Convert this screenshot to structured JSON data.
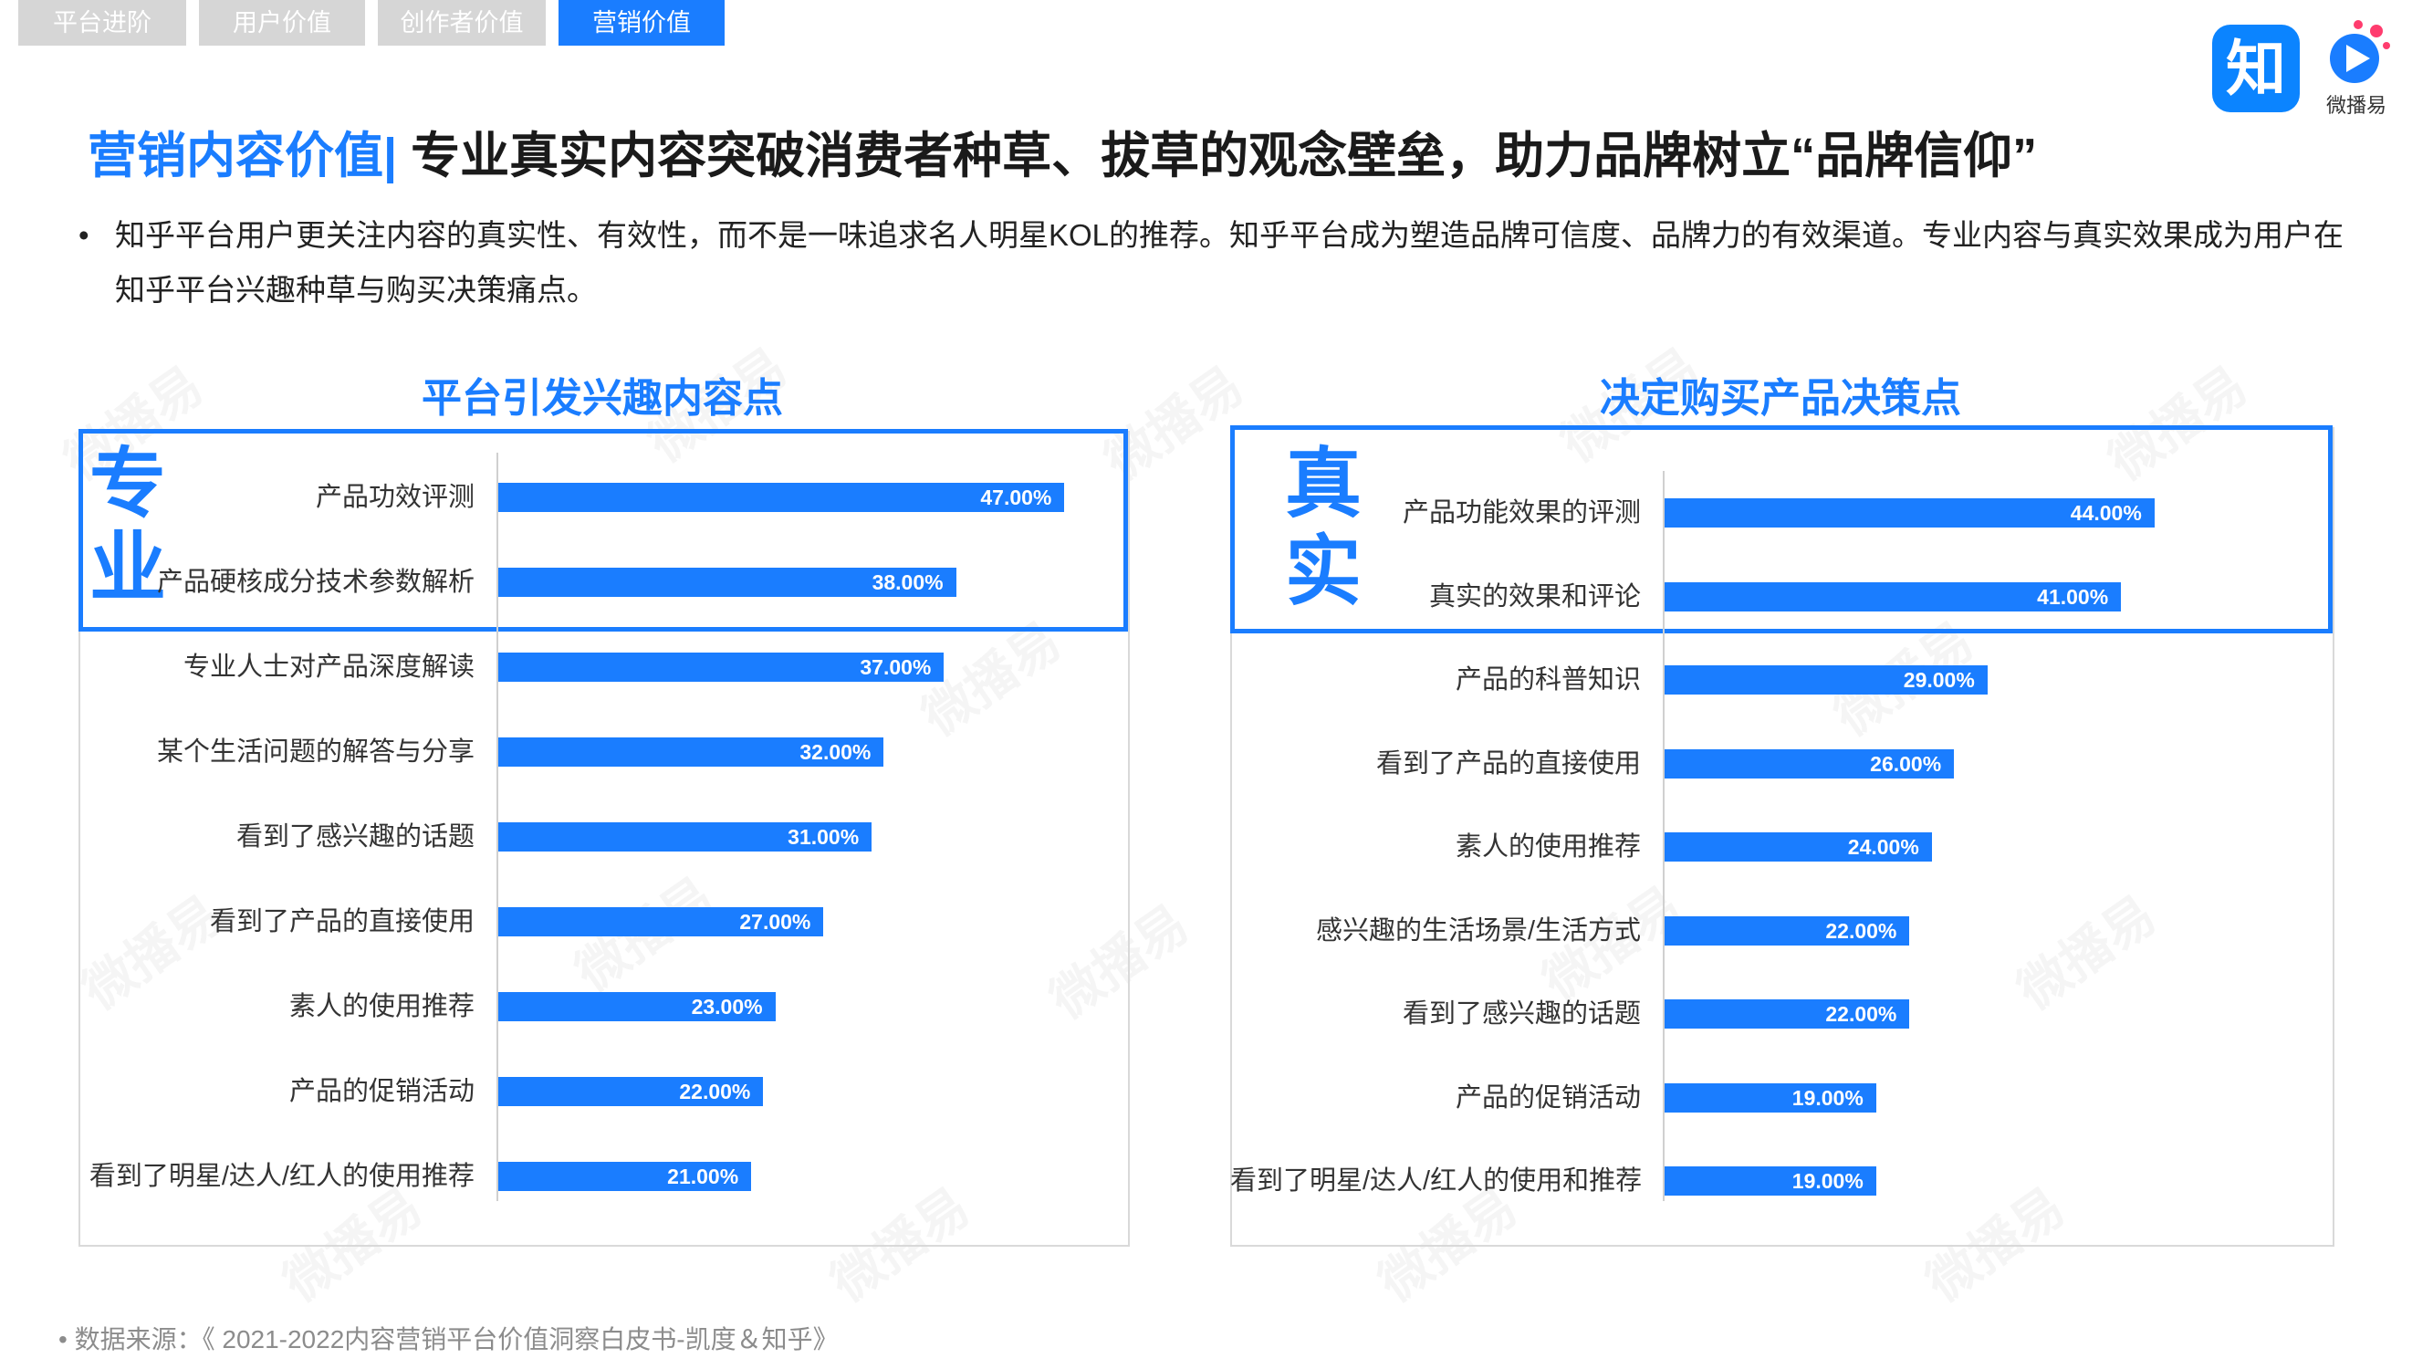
{
  "tabs": [
    {
      "label": "平台进阶",
      "active": false
    },
    {
      "label": "用户价值",
      "active": false
    },
    {
      "label": "创作者价值",
      "active": false
    },
    {
      "label": "营销价值",
      "active": true
    }
  ],
  "title": {
    "prefix": "营销内容价值|",
    "main": " 专业真实内容突破消费者种草、拔草的观念壁垒，助力品牌树立“品牌信仰”"
  },
  "bullet": "知乎平台用户更关注内容的真实性、有效性，而不是一味追求名人明星KOL的推荐。知乎平台成为塑造品牌可信度、品牌力的有效渠道。专业内容与真实效果成为用户在知乎平台兴趣种草与购买决策痛点。",
  "logos": {
    "zhihu": "知",
    "weiboyi": "微播易"
  },
  "watermark": "微播易",
  "source": "数据来源：《 2021-2022内容营销平台价值洞察白皮书-凯度＆知乎》",
  "colors": {
    "accent": "#1a7dff",
    "zhihu_blue": "#0b84ff"
  },
  "chart_data": [
    {
      "type": "bar",
      "orientation": "horizontal",
      "title": "平台引发兴趣内容点",
      "highlight": {
        "chars": [
          "专",
          "业"
        ],
        "count": 2
      },
      "categories": [
        "产品功效评测",
        "产品硬核成分技术参数解析",
        "专业人士对产品深度解读",
        "某个生活问题的解答与分享",
        "看到了感兴趣的话题",
        "看到了产品的直接使用",
        "素人的使用推荐",
        "产品的促销活动",
        "看到了明星/达人/红人的使用推荐"
      ],
      "values": [
        47,
        38,
        37,
        32,
        31,
        27,
        23,
        22,
        21
      ],
      "labels": [
        "47.00%",
        "38.00%",
        "37.00%",
        "32.00%",
        "31.00%",
        "27.00%",
        "23.00%",
        "22.00%",
        "21.00%"
      ],
      "xlim": [
        0,
        100
      ]
    },
    {
      "type": "bar",
      "orientation": "horizontal",
      "title": "决定购买产品决策点",
      "highlight": {
        "chars": [
          "真",
          "实"
        ],
        "count": 2
      },
      "categories": [
        "产品功能效果的评测",
        "真实的效果和评论",
        "产品的科普知识",
        "看到了产品的直接使用",
        "素人的使用推荐",
        "感兴趣的生活场景/生活方式",
        "看到了感兴趣的话题",
        "产品的促销活动",
        "看到了明星/达人/红人的使用和推荐"
      ],
      "values": [
        44,
        41,
        29,
        26,
        24,
        22,
        22,
        19,
        19
      ],
      "labels": [
        "44.00%",
        "41.00%",
        "29.00%",
        "26.00%",
        "24.00%",
        "22.00%",
        "22.00%",
        "19.00%",
        "19.00%"
      ],
      "xlim": [
        0,
        100
      ]
    }
  ]
}
